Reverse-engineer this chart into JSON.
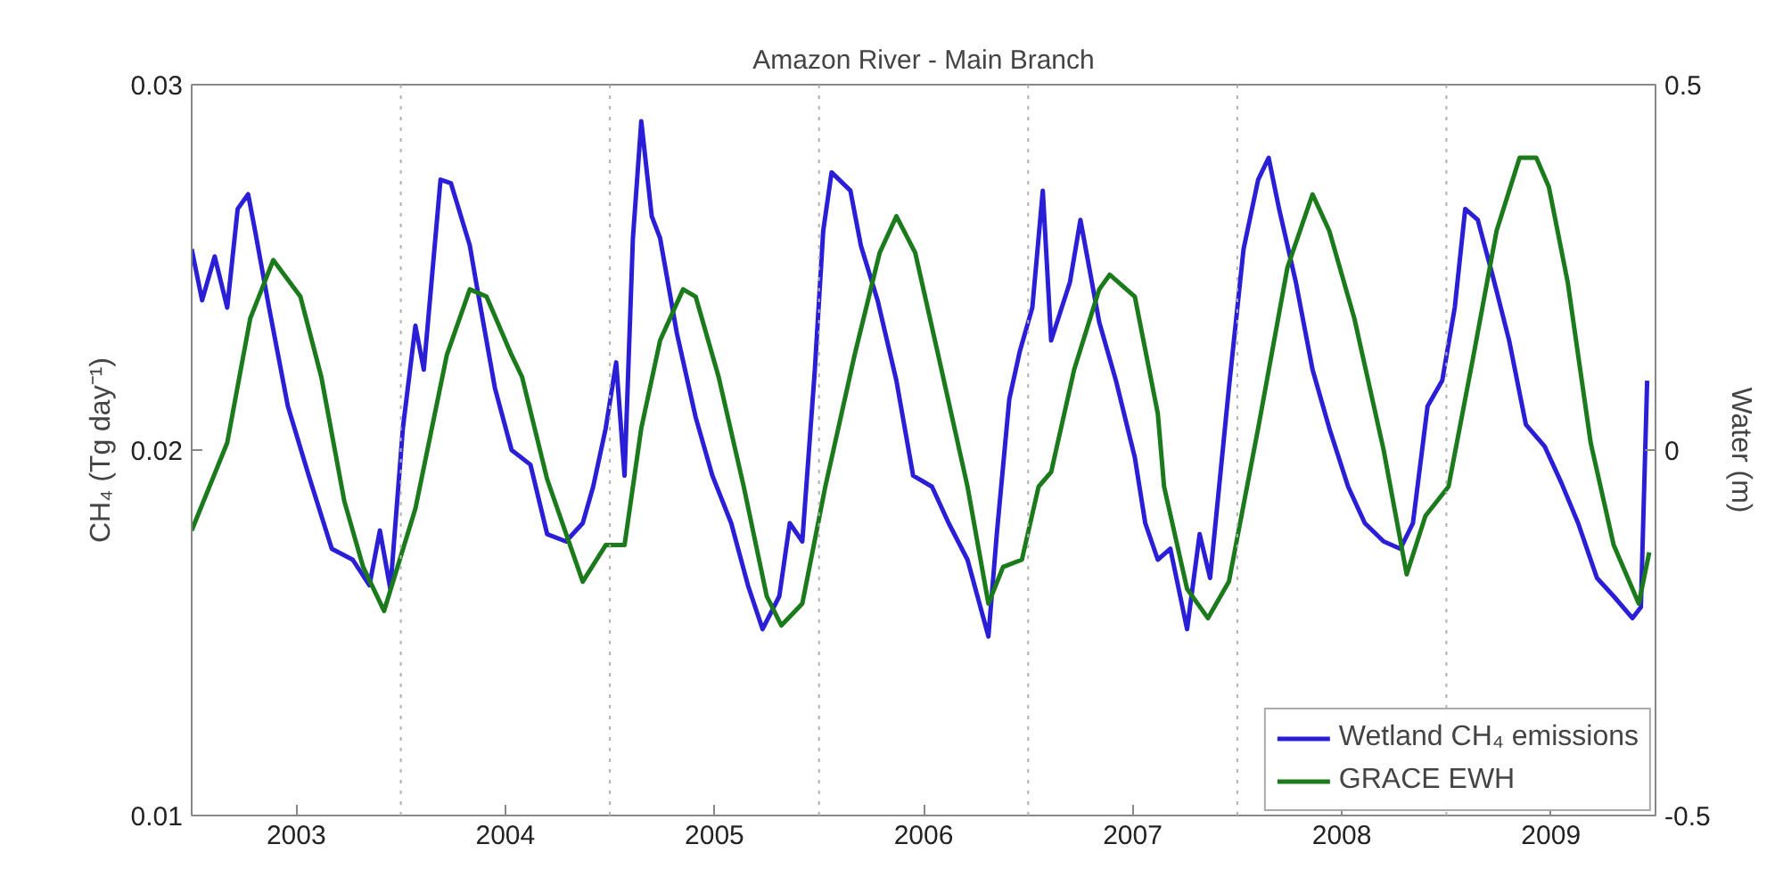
{
  "chart_data": {
    "type": "line",
    "title": "Amazon River - Main Branch",
    "ylabel": "CH₄ (Tg day⁻¹)",
    "y2label": "Water (m)",
    "xlim": [
      2002.5,
      2009.5
    ],
    "xticks": [
      2003,
      2004,
      2005,
      2006,
      2007,
      2008,
      2009
    ],
    "ylim": [
      0.01,
      0.03
    ],
    "yticks": [
      0.01,
      0.02,
      0.03
    ],
    "y2lim": [
      -0.5,
      0.5
    ],
    "y2ticks": [
      -0.5,
      0,
      0.5
    ],
    "legend": "bottom right",
    "line_style": "solid",
    "ref_lines": [
      {
        "axis": "x",
        "value": 2003.5,
        "color": "#b0b0b0",
        "line_style": "dotted"
      },
      {
        "axis": "x",
        "value": 2004.5,
        "color": "#b0b0b0",
        "line_style": "dotted"
      },
      {
        "axis": "x",
        "value": 2005.5,
        "color": "#b0b0b0",
        "line_style": "dotted"
      },
      {
        "axis": "x",
        "value": 2006.5,
        "color": "#b0b0b0",
        "line_style": "dotted"
      },
      {
        "axis": "x",
        "value": 2007.5,
        "color": "#b0b0b0",
        "line_style": "dotted"
      },
      {
        "axis": "x",
        "value": 2008.5,
        "color": "#b0b0b0",
        "line_style": "dotted"
      }
    ],
    "series": [
      {
        "name": "Wetland CH₄ emissions",
        "color": "#2a1fd6",
        "x": [
          2002.5,
          2002.55,
          2002.61,
          2002.67,
          2002.72,
          2002.77,
          2002.8,
          2002.87,
          2002.96,
          2003.06,
          2003.17,
          2003.27,
          2003.35,
          2003.4,
          2003.45,
          2003.51,
          2003.57,
          2003.61,
          2003.69,
          2003.74,
          2003.83,
          2003.86,
          2003.95,
          2004.03,
          2004.12,
          2004.2,
          2004.29,
          2004.37,
          2004.42,
          2004.48,
          2004.53,
          2004.57,
          2004.61,
          2004.65,
          2004.7,
          2004.74,
          2004.82,
          2004.91,
          2004.99,
          2005.08,
          2005.16,
          2005.23,
          2005.31,
          2005.36,
          2005.42,
          2005.48,
          2005.52,
          2005.56,
          2005.65,
          2005.7,
          2005.78,
          2005.87,
          2005.95,
          2006.04,
          2006.12,
          2006.21,
          2006.31,
          2006.35,
          2006.41,
          2006.46,
          2006.52,
          2006.57,
          2006.61,
          2006.7,
          2006.75,
          2006.84,
          2006.92,
          2007.01,
          2007.06,
          2007.12,
          2007.18,
          2007.26,
          2007.32,
          2007.37,
          2007.46,
          2007.53,
          2007.6,
          2007.65,
          2007.7,
          2007.78,
          2007.86,
          2007.94,
          2008.03,
          2008.11,
          2008.2,
          2008.28,
          2008.34,
          2008.41,
          2008.48,
          2008.54,
          2008.59,
          2008.65,
          2008.72,
          2008.8,
          2008.88,
          2008.97,
          2009.05,
          2009.13,
          2009.22,
          2009.3,
          2009.39,
          2009.43,
          2009.46
        ],
        "values": [
          0.0255,
          0.0241,
          0.0253,
          0.0239,
          0.0266,
          0.027,
          0.0261,
          0.0239,
          0.0212,
          0.0193,
          0.0173,
          0.017,
          0.0163,
          0.0178,
          0.0162,
          0.0206,
          0.0234,
          0.0222,
          0.0274,
          0.0273,
          0.0256,
          0.0246,
          0.0217,
          0.02,
          0.0196,
          0.0177,
          0.0175,
          0.018,
          0.019,
          0.0206,
          0.0224,
          0.0193,
          0.0258,
          0.029,
          0.0264,
          0.0258,
          0.0232,
          0.0209,
          0.0193,
          0.018,
          0.0163,
          0.0151,
          0.016,
          0.018,
          0.0175,
          0.0222,
          0.026,
          0.0276,
          0.0271,
          0.0256,
          0.0241,
          0.0219,
          0.0193,
          0.019,
          0.018,
          0.017,
          0.0149,
          0.0177,
          0.0214,
          0.0227,
          0.0239,
          0.0271,
          0.023,
          0.0246,
          0.0263,
          0.0235,
          0.0219,
          0.0198,
          0.018,
          0.017,
          0.0173,
          0.0151,
          0.0177,
          0.0165,
          0.0217,
          0.0255,
          0.0274,
          0.028,
          0.0266,
          0.0246,
          0.0222,
          0.0206,
          0.019,
          0.018,
          0.0175,
          0.0173,
          0.018,
          0.0212,
          0.0219,
          0.0239,
          0.0266,
          0.0263,
          0.0248,
          0.023,
          0.0207,
          0.0201,
          0.0191,
          0.018,
          0.0165,
          0.016,
          0.0154,
          0.0157,
          0.0219
        ]
      },
      {
        "name": "GRACE EWH",
        "color": "#1b7a1b",
        "axis": "y2",
        "x": [
          2002.5,
          2002.67,
          2002.78,
          2002.89,
          2003.02,
          2003.12,
          2003.23,
          2003.32,
          2003.42,
          2003.57,
          2003.72,
          2003.83,
          2003.91,
          2004.03,
          2004.08,
          2004.2,
          2004.37,
          2004.48,
          2004.57,
          2004.65,
          2004.74,
          2004.85,
          2004.91,
          2005.02,
          2005.14,
          2005.25,
          2005.32,
          2005.42,
          2005.53,
          2005.67,
          2005.79,
          2005.87,
          2005.96,
          2006.07,
          2006.21,
          2006.31,
          2006.38,
          2006.47,
          2006.55,
          2006.61,
          2006.72,
          2006.84,
          2006.89,
          2007.01,
          2007.12,
          2007.15,
          2007.26,
          2007.36,
          2007.46,
          2007.6,
          2007.74,
          2007.86,
          2007.94,
          2008.06,
          2008.2,
          2008.31,
          2008.4,
          2008.51,
          2008.63,
          2008.74,
          2008.85,
          2008.93,
          2008.99,
          2009.08,
          2009.19,
          2009.3,
          2009.42,
          2009.47
        ],
        "values": [
          -0.11,
          0.01,
          0.18,
          0.26,
          0.21,
          0.1,
          -0.07,
          -0.16,
          -0.22,
          -0.08,
          0.13,
          0.22,
          0.21,
          0.13,
          0.1,
          -0.04,
          -0.18,
          -0.13,
          -0.13,
          0.03,
          0.15,
          0.22,
          0.21,
          0.1,
          -0.05,
          -0.2,
          -0.24,
          -0.21,
          -0.05,
          0.13,
          0.27,
          0.32,
          0.27,
          0.13,
          -0.05,
          -0.21,
          -0.16,
          -0.15,
          -0.05,
          -0.03,
          0.11,
          0.22,
          0.24,
          0.21,
          0.05,
          -0.05,
          -0.19,
          -0.23,
          -0.18,
          0.03,
          0.25,
          0.35,
          0.3,
          0.18,
          0.0,
          -0.17,
          -0.09,
          -0.05,
          0.13,
          0.3,
          0.4,
          0.4,
          0.36,
          0.23,
          0.01,
          -0.13,
          -0.21,
          -0.14
        ]
      }
    ]
  }
}
